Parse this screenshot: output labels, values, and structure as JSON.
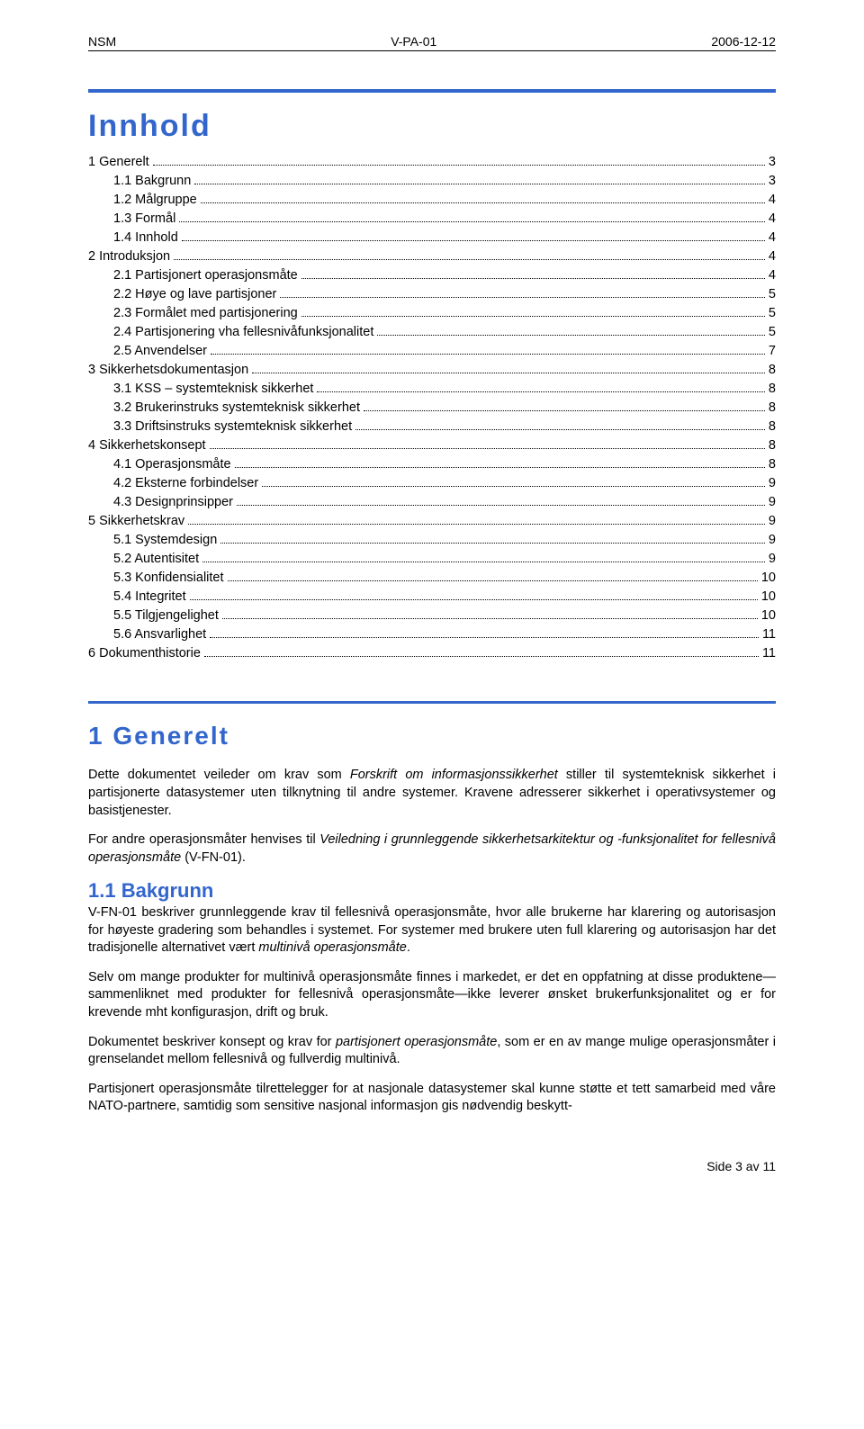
{
  "header": {
    "left": "NSM",
    "center": "V-PA-01",
    "right": "2006-12-12"
  },
  "colors": {
    "accent": "#3366cc",
    "text": "#000000",
    "background": "#ffffff"
  },
  "toc_title": "Innhold",
  "toc": [
    {
      "level": 0,
      "label": "1 Generelt",
      "page": "3"
    },
    {
      "level": 1,
      "label": "1.1 Bakgrunn",
      "page": "3"
    },
    {
      "level": 1,
      "label": "1.2 Målgruppe",
      "page": "4"
    },
    {
      "level": 1,
      "label": "1.3 Formål",
      "page": "4"
    },
    {
      "level": 1,
      "label": "1.4 Innhold",
      "page": "4"
    },
    {
      "level": 0,
      "label": "2 Introduksjon",
      "page": "4"
    },
    {
      "level": 1,
      "label": "2.1 Partisjonert operasjonsmåte",
      "page": "4"
    },
    {
      "level": 1,
      "label": "2.2 Høye og lave partisjoner",
      "page": "5"
    },
    {
      "level": 1,
      "label": "2.3 Formålet med partisjonering",
      "page": "5"
    },
    {
      "level": 1,
      "label": "2.4 Partisjonering vha fellesnivåfunksjonalitet",
      "page": "5"
    },
    {
      "level": 1,
      "label": "2.5 Anvendelser",
      "page": "7"
    },
    {
      "level": 0,
      "label": "3 Sikkerhetsdokumentasjon",
      "page": "8"
    },
    {
      "level": 1,
      "label": "3.1 KSS – systemteknisk sikkerhet",
      "page": "8"
    },
    {
      "level": 1,
      "label": "3.2 Brukerinstruks systemteknisk sikkerhet",
      "page": "8"
    },
    {
      "level": 1,
      "label": "3.3 Driftsinstruks systemteknisk sikkerhet",
      "page": "8"
    },
    {
      "level": 0,
      "label": "4 Sikkerhetskonsept",
      "page": "8"
    },
    {
      "level": 1,
      "label": "4.1 Operasjonsmåte",
      "page": "8"
    },
    {
      "level": 1,
      "label": "4.2 Eksterne forbindelser",
      "page": "9"
    },
    {
      "level": 1,
      "label": "4.3 Designprinsipper",
      "page": "9"
    },
    {
      "level": 0,
      "label": "5 Sikkerhetskrav",
      "page": "9"
    },
    {
      "level": 1,
      "label": "5.1 Systemdesign",
      "page": "9"
    },
    {
      "level": 1,
      "label": "5.2 Autentisitet",
      "page": "9"
    },
    {
      "level": 1,
      "label": "5.3 Konfidensialitet",
      "page": "10"
    },
    {
      "level": 1,
      "label": "5.4 Integritet",
      "page": "10"
    },
    {
      "level": 1,
      "label": "5.5 Tilgjengelighet",
      "page": "10"
    },
    {
      "level": 1,
      "label": "5.6 Ansvarlighet",
      "page": "11"
    },
    {
      "level": 0,
      "label": "6 Dokumenthistorie",
      "page": "11"
    }
  ],
  "section": {
    "heading": "1 Generelt",
    "paragraphs": [
      {
        "runs": [
          {
            "t": "Dette dokumentet veileder om krav som "
          },
          {
            "t": "Forskrift om informasjonssikkerhet",
            "ital": true
          },
          {
            "t": " stiller til systemteknisk sikkerhet i partisjonerte datasystemer uten tilknytning til andre systemer. Kravene adresserer sikkerhet i operativsystemer og basistjenester."
          }
        ]
      },
      {
        "runs": [
          {
            "t": "For andre operasjonsmåter henvises til "
          },
          {
            "t": "Veiledning i grunnleggende sikkerhetsarkitektur og -funksjonalitet for fellesnivå operasjonsmåte",
            "ital": true
          },
          {
            "t": " (V-FN-01)."
          }
        ]
      }
    ],
    "subheading": "1.1 Bakgrunn",
    "sub_paragraphs": [
      {
        "runs": [
          {
            "t": "V-FN-01 beskriver grunnleggende krav til fellesnivå operasjonsmåte, hvor alle brukerne har klarering og autorisasjon for høyeste gradering som behandles i systemet. For systemer med brukere uten full klarering og autorisasjon har det tradisjonelle alternativet vært "
          },
          {
            "t": "multinivå operasjonsmåte",
            "ital": true
          },
          {
            "t": "."
          }
        ]
      },
      {
        "runs": [
          {
            "t": "Selv om mange produkter for multinivå operasjonsmåte finnes i markedet, er det en oppfatning at disse produktene—sammenliknet med produkter for fellesnivå operasjonsmåte—ikke leverer ønsket brukerfunksjonalitet og er for krevende mht konfigurasjon, drift og bruk."
          }
        ]
      },
      {
        "runs": [
          {
            "t": "Dokumentet beskriver konsept og krav for "
          },
          {
            "t": "partisjonert operasjonsmåte",
            "ital": true
          },
          {
            "t": ", som er en av mange mulige operasjonsmåter i grenselandet mellom fellesnivå og fullverdig multinivå."
          }
        ]
      },
      {
        "runs": [
          {
            "t": "Partisjonert operasjonsmåte tilrettelegger for at nasjonale datasystemer skal kunne støtte et tett samarbeid med våre NATO-partnere, samtidig som sensitive nasjonal informasjon gis nødvendig beskytt-"
          }
        ]
      }
    ]
  },
  "footer": "Side 3 av 11"
}
